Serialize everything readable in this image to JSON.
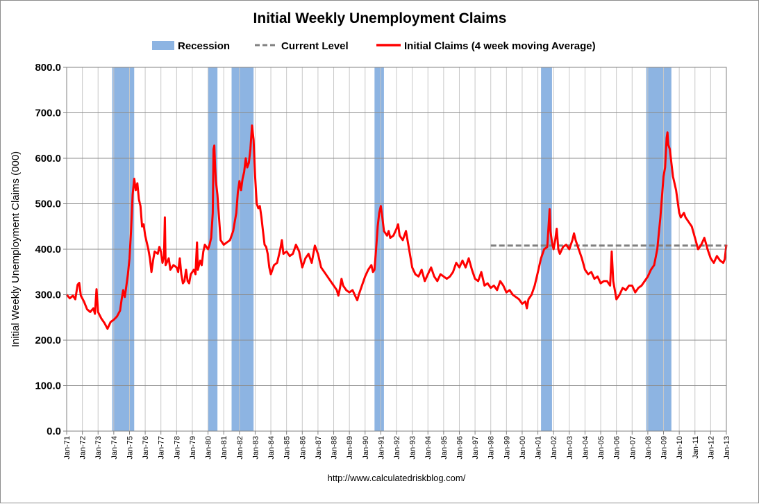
{
  "chart_data": {
    "type": "line",
    "title": "Initial Weekly Unemployment Claims",
    "ylabel": "Initial Weekly Unemployment Claims (000)",
    "xlabel": "",
    "source_url": "http://www.calculatedriskblog.com/",
    "ylim": [
      0,
      800
    ],
    "xlim": [
      1971.0,
      2013.0
    ],
    "grid": true,
    "legend_position": "top",
    "y_ticks": [
      "0.0",
      "100.0",
      "200.0",
      "300.0",
      "400.0",
      "500.0",
      "600.0",
      "700.0",
      "800.0"
    ],
    "x_ticks": [
      "Jan-71",
      "Jan-72",
      "Jan-73",
      "Jan-74",
      "Jan-75",
      "Jan-76",
      "Jan-77",
      "Jan-78",
      "Jan-79",
      "Jan-80",
      "Jan-81",
      "Jan-82",
      "Jan-83",
      "Jan-84",
      "Jan-85",
      "Jan-86",
      "Jan-87",
      "Jan-88",
      "Jan-89",
      "Jan-90",
      "Jan-91",
      "Jan-92",
      "Jan-93",
      "Jan-94",
      "Jan-95",
      "Jan-96",
      "Jan-97",
      "Jan-98",
      "Jan-99",
      "Jan-00",
      "Jan-01",
      "Jan-02",
      "Jan-03",
      "Jan-04",
      "Jan-05",
      "Jan-06",
      "Jan-07",
      "Jan-08",
      "Jan-09",
      "Jan-10",
      "Jan-11",
      "Jan-12",
      "Jan-13"
    ],
    "colors": {
      "recession": "#8db4e2",
      "current_level": "#808080",
      "claims": "#ff0000",
      "grid": "#a6a6a6"
    },
    "legend": {
      "recession": "Recession",
      "current_level": "Current Level",
      "claims": "Initial Claims (4 week moving Average)"
    },
    "recessions": [
      {
        "start": 1973.9,
        "end": 1975.3
      },
      {
        "start": 1980.0,
        "end": 1980.6
      },
      {
        "start": 1981.5,
        "end": 1982.9
      },
      {
        "start": 1990.6,
        "end": 1991.2
      },
      {
        "start": 2001.2,
        "end": 2001.9
      },
      {
        "start": 2007.9,
        "end": 2009.5
      }
    ],
    "current_level": {
      "value": 408,
      "x_start": 1998.0,
      "x_end": 2013.0
    },
    "series": [
      {
        "name": "Initial Claims (4 week moving Average)",
        "points": [
          [
            1971.0,
            300
          ],
          [
            1971.2,
            292
          ],
          [
            1971.4,
            298
          ],
          [
            1971.55,
            290
          ],
          [
            1971.7,
            322
          ],
          [
            1971.8,
            326
          ],
          [
            1971.9,
            298
          ],
          [
            1972.1,
            285
          ],
          [
            1972.3,
            268
          ],
          [
            1972.5,
            262
          ],
          [
            1972.7,
            270
          ],
          [
            1972.8,
            258
          ],
          [
            1972.9,
            312
          ],
          [
            1973.0,
            262
          ],
          [
            1973.2,
            248
          ],
          [
            1973.4,
            238
          ],
          [
            1973.6,
            225
          ],
          [
            1973.8,
            240
          ],
          [
            1974.0,
            245
          ],
          [
            1974.2,
            252
          ],
          [
            1974.4,
            265
          ],
          [
            1974.5,
            290
          ],
          [
            1974.6,
            310
          ],
          [
            1974.7,
            295
          ],
          [
            1974.8,
            320
          ],
          [
            1974.9,
            345
          ],
          [
            1975.0,
            380
          ],
          [
            1975.1,
            440
          ],
          [
            1975.2,
            520
          ],
          [
            1975.3,
            555
          ],
          [
            1975.4,
            530
          ],
          [
            1975.5,
            545
          ],
          [
            1975.6,
            510
          ],
          [
            1975.7,
            495
          ],
          [
            1975.8,
            450
          ],
          [
            1975.9,
            455
          ],
          [
            1976.0,
            430
          ],
          [
            1976.2,
            400
          ],
          [
            1976.3,
            380
          ],
          [
            1976.4,
            350
          ],
          [
            1976.5,
            375
          ],
          [
            1976.6,
            395
          ],
          [
            1976.8,
            390
          ],
          [
            1976.9,
            405
          ],
          [
            1977.0,
            395
          ],
          [
            1977.1,
            370
          ],
          [
            1977.2,
            385
          ],
          [
            1977.25,
            470
          ],
          [
            1977.3,
            365
          ],
          [
            1977.5,
            380
          ],
          [
            1977.6,
            355
          ],
          [
            1977.8,
            365
          ],
          [
            1978.0,
            360
          ],
          [
            1978.1,
            350
          ],
          [
            1978.2,
            380
          ],
          [
            1978.3,
            345
          ],
          [
            1978.4,
            325
          ],
          [
            1978.5,
            330
          ],
          [
            1978.6,
            355
          ],
          [
            1978.7,
            330
          ],
          [
            1978.8,
            325
          ],
          [
            1978.9,
            345
          ],
          [
            1979.0,
            350
          ],
          [
            1979.1,
            355
          ],
          [
            1979.2,
            345
          ],
          [
            1979.3,
            415
          ],
          [
            1979.35,
            355
          ],
          [
            1979.5,
            375
          ],
          [
            1979.6,
            365
          ],
          [
            1979.7,
            395
          ],
          [
            1979.8,
            410
          ],
          [
            1980.0,
            400
          ],
          [
            1980.1,
            410
          ],
          [
            1980.2,
            425
          ],
          [
            1980.3,
            480
          ],
          [
            1980.35,
            620
          ],
          [
            1980.4,
            628
          ],
          [
            1980.45,
            580
          ],
          [
            1980.5,
            550
          ],
          [
            1980.6,
            520
          ],
          [
            1980.7,
            470
          ],
          [
            1980.8,
            420
          ],
          [
            1981.0,
            410
          ],
          [
            1981.2,
            415
          ],
          [
            1981.4,
            420
          ],
          [
            1981.6,
            440
          ],
          [
            1981.7,
            460
          ],
          [
            1981.8,
            480
          ],
          [
            1981.9,
            525
          ],
          [
            1982.0,
            550
          ],
          [
            1982.1,
            530
          ],
          [
            1982.2,
            555
          ],
          [
            1982.3,
            570
          ],
          [
            1982.4,
            600
          ],
          [
            1982.5,
            580
          ],
          [
            1982.6,
            590
          ],
          [
            1982.7,
            620
          ],
          [
            1982.8,
            672
          ],
          [
            1982.9,
            640
          ],
          [
            1983.0,
            560
          ],
          [
            1983.1,
            500
          ],
          [
            1983.2,
            490
          ],
          [
            1983.3,
            495
          ],
          [
            1983.4,
            470
          ],
          [
            1983.5,
            440
          ],
          [
            1983.6,
            410
          ],
          [
            1983.7,
            405
          ],
          [
            1983.8,
            390
          ],
          [
            1983.9,
            360
          ],
          [
            1984.0,
            345
          ],
          [
            1984.2,
            365
          ],
          [
            1984.4,
            370
          ],
          [
            1984.6,
            400
          ],
          [
            1984.7,
            420
          ],
          [
            1984.8,
            390
          ],
          [
            1985.0,
            395
          ],
          [
            1985.2,
            385
          ],
          [
            1985.4,
            390
          ],
          [
            1985.5,
            400
          ],
          [
            1985.6,
            410
          ],
          [
            1985.8,
            395
          ],
          [
            1986.0,
            360
          ],
          [
            1986.2,
            380
          ],
          [
            1986.4,
            390
          ],
          [
            1986.6,
            370
          ],
          [
            1986.8,
            408
          ],
          [
            1987.0,
            390
          ],
          [
            1987.2,
            360
          ],
          [
            1987.4,
            350
          ],
          [
            1987.6,
            340
          ],
          [
            1987.8,
            330
          ],
          [
            1988.0,
            320
          ],
          [
            1988.2,
            310
          ],
          [
            1988.3,
            298
          ],
          [
            1988.4,
            315
          ],
          [
            1988.5,
            335
          ],
          [
            1988.6,
            320
          ],
          [
            1988.8,
            310
          ],
          [
            1989.0,
            305
          ],
          [
            1989.2,
            310
          ],
          [
            1989.4,
            295
          ],
          [
            1989.5,
            288
          ],
          [
            1989.6,
            300
          ],
          [
            1989.8,
            320
          ],
          [
            1990.0,
            340
          ],
          [
            1990.2,
            355
          ],
          [
            1990.4,
            365
          ],
          [
            1990.5,
            350
          ],
          [
            1990.6,
            355
          ],
          [
            1990.7,
            400
          ],
          [
            1990.8,
            450
          ],
          [
            1990.9,
            480
          ],
          [
            1991.0,
            495
          ],
          [
            1991.1,
            470
          ],
          [
            1991.2,
            440
          ],
          [
            1991.4,
            430
          ],
          [
            1991.5,
            440
          ],
          [
            1991.6,
            425
          ],
          [
            1991.8,
            430
          ],
          [
            1992.0,
            445
          ],
          [
            1992.1,
            455
          ],
          [
            1992.2,
            430
          ],
          [
            1992.4,
            420
          ],
          [
            1992.6,
            440
          ],
          [
            1992.8,
            400
          ],
          [
            1993.0,
            360
          ],
          [
            1993.2,
            345
          ],
          [
            1993.4,
            340
          ],
          [
            1993.6,
            355
          ],
          [
            1993.8,
            330
          ],
          [
            1994.0,
            345
          ],
          [
            1994.2,
            360
          ],
          [
            1994.4,
            340
          ],
          [
            1994.6,
            330
          ],
          [
            1994.8,
            345
          ],
          [
            1995.0,
            340
          ],
          [
            1995.2,
            335
          ],
          [
            1995.4,
            340
          ],
          [
            1995.6,
            350
          ],
          [
            1995.8,
            370
          ],
          [
            1996.0,
            360
          ],
          [
            1996.2,
            375
          ],
          [
            1996.4,
            360
          ],
          [
            1996.6,
            380
          ],
          [
            1996.8,
            355
          ],
          [
            1997.0,
            335
          ],
          [
            1997.2,
            330
          ],
          [
            1997.4,
            350
          ],
          [
            1997.6,
            320
          ],
          [
            1997.8,
            325
          ],
          [
            1998.0,
            315
          ],
          [
            1998.2,
            320
          ],
          [
            1998.4,
            310
          ],
          [
            1998.6,
            330
          ],
          [
            1998.8,
            320
          ],
          [
            1999.0,
            305
          ],
          [
            1999.2,
            310
          ],
          [
            1999.4,
            300
          ],
          [
            1999.6,
            295
          ],
          [
            1999.8,
            290
          ],
          [
            2000.0,
            280
          ],
          [
            2000.2,
            285
          ],
          [
            2000.3,
            270
          ],
          [
            2000.4,
            290
          ],
          [
            2000.6,
            300
          ],
          [
            2000.8,
            320
          ],
          [
            2001.0,
            350
          ],
          [
            2001.2,
            380
          ],
          [
            2001.4,
            400
          ],
          [
            2001.6,
            405
          ],
          [
            2001.75,
            488
          ],
          [
            2001.8,
            440
          ],
          [
            2001.9,
            415
          ],
          [
            2002.0,
            400
          ],
          [
            2002.1,
            420
          ],
          [
            2002.2,
            445
          ],
          [
            2002.3,
            400
          ],
          [
            2002.4,
            390
          ],
          [
            2002.6,
            405
          ],
          [
            2002.8,
            410
          ],
          [
            2003.0,
            400
          ],
          [
            2003.2,
            420
          ],
          [
            2003.3,
            435
          ],
          [
            2003.4,
            420
          ],
          [
            2003.6,
            400
          ],
          [
            2003.8,
            380
          ],
          [
            2004.0,
            355
          ],
          [
            2004.2,
            345
          ],
          [
            2004.4,
            350
          ],
          [
            2004.6,
            335
          ],
          [
            2004.8,
            340
          ],
          [
            2005.0,
            325
          ],
          [
            2005.2,
            330
          ],
          [
            2005.4,
            330
          ],
          [
            2005.6,
            320
          ],
          [
            2005.7,
            395
          ],
          [
            2005.8,
            330
          ],
          [
            2006.0,
            290
          ],
          [
            2006.2,
            300
          ],
          [
            2006.4,
            315
          ],
          [
            2006.6,
            310
          ],
          [
            2006.8,
            320
          ],
          [
            2007.0,
            320
          ],
          [
            2007.2,
            305
          ],
          [
            2007.4,
            315
          ],
          [
            2007.6,
            320
          ],
          [
            2007.8,
            330
          ],
          [
            2008.0,
            340
          ],
          [
            2008.2,
            355
          ],
          [
            2008.4,
            365
          ],
          [
            2008.6,
            400
          ],
          [
            2008.8,
            470
          ],
          [
            2009.0,
            560
          ],
          [
            2009.1,
            580
          ],
          [
            2009.2,
            645
          ],
          [
            2009.25,
            657
          ],
          [
            2009.3,
            630
          ],
          [
            2009.4,
            620
          ],
          [
            2009.5,
            590
          ],
          [
            2009.6,
            560
          ],
          [
            2009.8,
            530
          ],
          [
            2010.0,
            480
          ],
          [
            2010.1,
            470
          ],
          [
            2010.2,
            475
          ],
          [
            2010.3,
            480
          ],
          [
            2010.4,
            470
          ],
          [
            2010.6,
            460
          ],
          [
            2010.8,
            450
          ],
          [
            2011.0,
            425
          ],
          [
            2011.2,
            400
          ],
          [
            2011.4,
            410
          ],
          [
            2011.6,
            425
          ],
          [
            2011.8,
            400
          ],
          [
            2012.0,
            380
          ],
          [
            2012.2,
            370
          ],
          [
            2012.4,
            385
          ],
          [
            2012.6,
            375
          ],
          [
            2012.8,
            370
          ],
          [
            2012.9,
            378
          ],
          [
            2013.0,
            410
          ]
        ]
      }
    ]
  }
}
